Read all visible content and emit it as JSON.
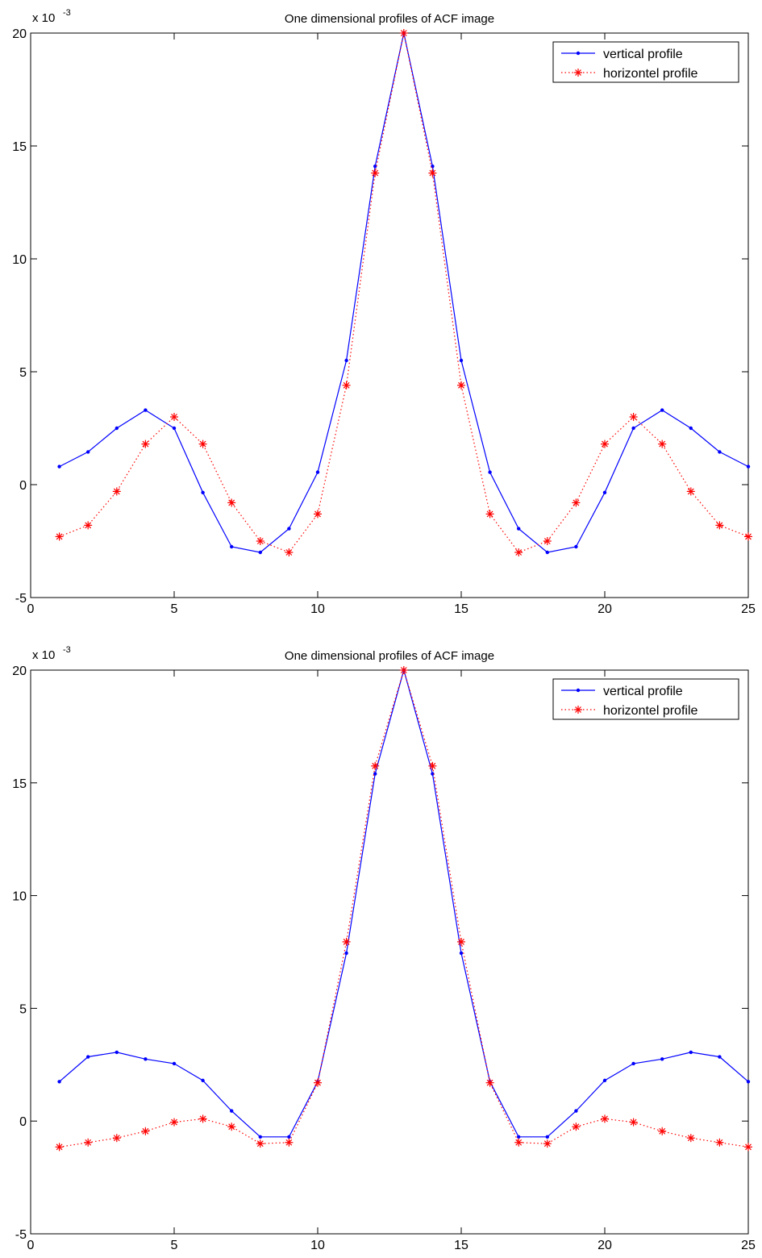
{
  "chart_data": [
    {
      "type": "line",
      "title": "One dimensional profiles of ACF image",
      "scale_label": "x 10",
      "scale_exponent": "-3",
      "xlim": [
        0,
        25
      ],
      "ylim": [
        -5,
        20
      ],
      "x_ticks": [
        "0",
        "5",
        "10",
        "15",
        "20",
        "25"
      ],
      "y_ticks": [
        "-5",
        "0",
        "5",
        "10",
        "15",
        "20"
      ],
      "legend_position": "top-right",
      "grid": false,
      "x": [
        1,
        2,
        3,
        4,
        5,
        6,
        7,
        8,
        9,
        10,
        11,
        12,
        13,
        14,
        15,
        16,
        17,
        18,
        19,
        20,
        21,
        22,
        23,
        24,
        25
      ],
      "series": [
        {
          "name": "vertical profile",
          "color": "#0000ff",
          "line": "solid",
          "marker": "dot",
          "values": [
            0.8,
            1.45,
            2.5,
            3.3,
            2.5,
            -0.35,
            -2.75,
            -3.0,
            -1.95,
            0.55,
            5.5,
            14.1,
            20.0,
            14.1,
            5.5,
            0.55,
            -1.95,
            -3.0,
            -2.75,
            -0.35,
            2.5,
            3.3,
            2.5,
            1.45,
            0.8
          ]
        },
        {
          "name": "horizontel profile",
          "color": "#ff0000",
          "line": "dotted",
          "marker": "asterisk",
          "values": [
            -2.3,
            -1.8,
            -0.3,
            1.8,
            3.0,
            1.8,
            -0.8,
            -2.5,
            -3.0,
            -1.3,
            4.4,
            13.8,
            20.0,
            13.8,
            4.4,
            -1.3,
            -3.0,
            -2.5,
            -0.8,
            1.8,
            3.0,
            1.8,
            -0.3,
            -1.8,
            -2.3
          ]
        }
      ]
    },
    {
      "type": "line",
      "title": "One dimensional profiles of ACF image",
      "scale_label": "x 10",
      "scale_exponent": "-3",
      "xlim": [
        0,
        25
      ],
      "ylim": [
        -5,
        20
      ],
      "x_ticks": [
        "0",
        "5",
        "10",
        "15",
        "20",
        "25"
      ],
      "y_ticks": [
        "-5",
        "0",
        "5",
        "10",
        "15",
        "20"
      ],
      "legend_position": "top-right",
      "grid": false,
      "x": [
        1,
        2,
        3,
        4,
        5,
        6,
        7,
        8,
        9,
        10,
        11,
        12,
        13,
        14,
        15,
        16,
        17,
        18,
        19,
        20,
        21,
        22,
        23,
        24,
        25
      ],
      "series": [
        {
          "name": "vertical profile",
          "color": "#0000ff",
          "line": "solid",
          "marker": "dot",
          "values": [
            1.75,
            2.85,
            3.05,
            2.75,
            2.55,
            1.8,
            0.45,
            -0.7,
            -0.7,
            1.75,
            7.45,
            15.4,
            20.0,
            15.4,
            7.45,
            1.75,
            -0.7,
            -0.7,
            0.45,
            1.8,
            2.55,
            2.75,
            3.05,
            2.85,
            1.75
          ]
        },
        {
          "name": "horizontel profile",
          "color": "#ff0000",
          "line": "dotted",
          "marker": "asterisk",
          "values": [
            -1.15,
            -0.95,
            -0.75,
            -0.45,
            -0.05,
            0.1,
            -0.25,
            -1.0,
            -0.95,
            1.7,
            7.95,
            15.75,
            20.0,
            15.75,
            7.95,
            1.7,
            -0.95,
            -1.0,
            -0.25,
            0.1,
            -0.05,
            -0.45,
            -0.75,
            -0.95,
            -1.15
          ]
        }
      ]
    }
  ]
}
